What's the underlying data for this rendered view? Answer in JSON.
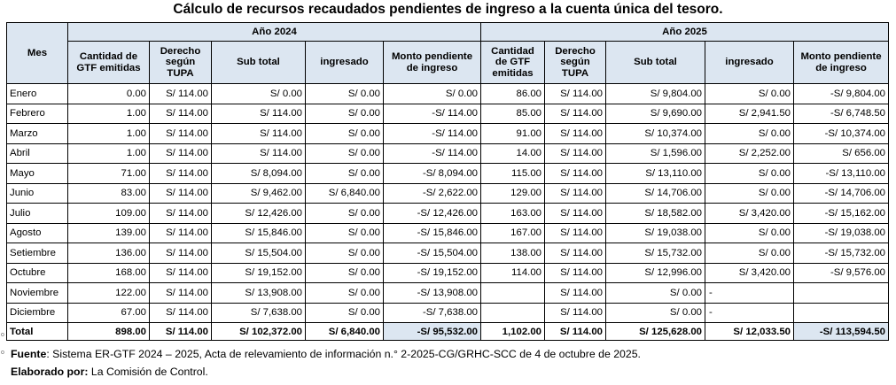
{
  "title": "Cálculo de recursos recaudados pendientes de ingreso a la cuenta única del tesoro.",
  "headers": {
    "mes": "Mes",
    "year1": "Año 2024",
    "year2": "Año 2025",
    "cols": [
      "Cantidad de GTF emitidas",
      "Derecho según TUPA",
      "Sub total",
      "ingresado",
      "Monto pendiente de ingreso"
    ]
  },
  "rows": [
    {
      "mes": "Enero",
      "a": [
        "0.00",
        "S/ 114.00",
        "S/ 0.00",
        "S/ 0.00",
        "S/ 0.00"
      ],
      "b": [
        "86.00",
        "S/ 114.00",
        "S/ 9,804.00",
        "S/ 0.00",
        "-S/ 9,804.00"
      ]
    },
    {
      "mes": "Febrero",
      "a": [
        "1.00",
        "S/ 114.00",
        "S/ 114.00",
        "S/ 0.00",
        "-S/ 114.00"
      ],
      "b": [
        "85.00",
        "S/ 114.00",
        "S/ 9,690.00",
        "S/ 2,941.50",
        "-S/ 6,748.50"
      ]
    },
    {
      "mes": "Marzo",
      "a": [
        "1.00",
        "S/ 114.00",
        "S/ 114.00",
        "S/ 0.00",
        "-S/ 114.00"
      ],
      "b": [
        "91.00",
        "S/ 114.00",
        "S/ 10,374.00",
        "S/ 0.00",
        "-S/ 10,374.00"
      ]
    },
    {
      "mes": "Abril",
      "a": [
        "1.00",
        "S/ 114.00",
        "S/ 114.00",
        "S/ 0.00",
        "-S/ 114.00"
      ],
      "b": [
        "14.00",
        "S/ 114.00",
        "S/ 1,596.00",
        "S/ 2,252.00",
        "S/ 656.00"
      ]
    },
    {
      "mes": "Mayo",
      "a": [
        "71.00",
        "S/ 114.00",
        "S/ 8,094.00",
        "S/ 0.00",
        "-S/ 8,094.00"
      ],
      "b": [
        "115.00",
        "S/ 114.00",
        "S/ 13,110.00",
        "S/ 0.00",
        "-S/ 13,110.00"
      ]
    },
    {
      "mes": "Junio",
      "a": [
        "83.00",
        "S/ 114.00",
        "S/ 9,462.00",
        "S/ 6,840.00",
        "-S/ 2,622.00"
      ],
      "b": [
        "129.00",
        "S/ 114.00",
        "S/ 14,706.00",
        "S/ 0.00",
        "-S/ 14,706.00"
      ]
    },
    {
      "mes": "Julio",
      "a": [
        "109.00",
        "S/ 114.00",
        "S/ 12,426.00",
        "S/ 0.00",
        "-S/ 12,426.00"
      ],
      "b": [
        "163.00",
        "S/ 114.00",
        "S/ 18,582.00",
        "S/ 3,420.00",
        "-S/ 15,162.00"
      ]
    },
    {
      "mes": "Agosto",
      "a": [
        "139.00",
        "S/ 114.00",
        "S/ 15,846.00",
        "S/ 0.00",
        "-S/ 15,846.00"
      ],
      "b": [
        "167.00",
        "S/ 114.00",
        "S/ 19,038.00",
        "S/ 0.00",
        "-S/ 19,038.00"
      ]
    },
    {
      "mes": "Setiembre",
      "a": [
        "136.00",
        "S/ 114.00",
        "S/ 15,504.00",
        "S/ 0.00",
        "-S/ 15,504.00"
      ],
      "b": [
        "138.00",
        "S/ 114.00",
        "S/ 15,732.00",
        "S/ 0.00",
        "-S/ 15,732.00"
      ]
    },
    {
      "mes": "Octubre",
      "a": [
        "168.00",
        "S/ 114.00",
        "S/ 19,152.00",
        "S/ 0.00",
        "-S/ 19,152.00"
      ],
      "b": [
        "114.00",
        "S/ 114.00",
        "S/ 12,996.00",
        "S/ 3,420.00",
        "-S/ 9,576.00"
      ]
    },
    {
      "mes": "Noviembre",
      "a": [
        "122.00",
        "S/ 114.00",
        "S/ 13,908.00",
        "S/ 0.00",
        "-S/ 13,908.00"
      ],
      "b": [
        "",
        "S/ 114.00",
        "S/ 0.00",
        "-",
        ""
      ]
    },
    {
      "mes": "Diciembre",
      "a": [
        "67.00",
        "S/ 114.00",
        "S/ 7,638.00",
        "S/ 0.00",
        "-S/ 7,638.00"
      ],
      "b": [
        "",
        "S/ 114.00",
        "S/ 0.00",
        "-",
        ""
      ]
    }
  ],
  "total": {
    "label": "Total",
    "a": [
      "898.00",
      "S/ 114.00",
      "S/ 102,372.00",
      "S/ 6,840.00",
      "-S/ 95,532.00"
    ],
    "b": [
      "1,102.00",
      "S/ 114.00",
      "S/ 125,628.00",
      "S/ 12,033.50",
      "-S/ 113,594.50"
    ]
  },
  "fuente_label": "Fuente",
  "fuente_text": ": Sistema ER-GTF 2024 – 2025, Acta de relevamiento de información n.° 2-2025-CG/GRHC-SCC de 4 de octubre de 2025.",
  "elaborado_label": "Elaborado por:",
  "elaborado_text": " La Comisión de Control.",
  "margin_marks": [
    "o",
    "o"
  ],
  "colors": {
    "header_bg": "#dce6f1"
  }
}
